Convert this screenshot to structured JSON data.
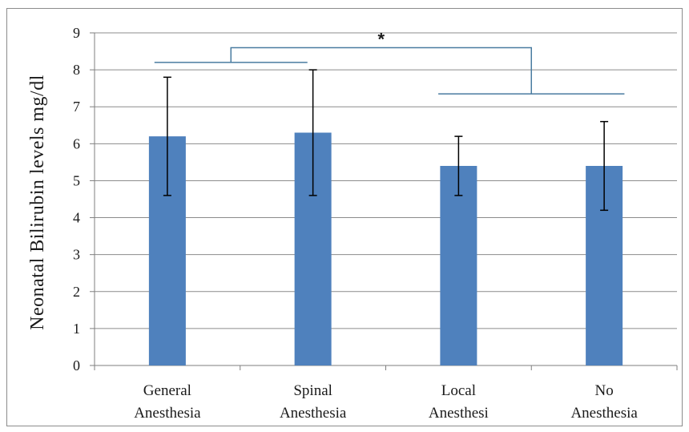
{
  "chart_data": {
    "type": "bar",
    "title": "",
    "xlabel": "",
    "ylabel": "Neonatal Bilirubin levels mg/dl",
    "ylim": [
      0,
      9
    ],
    "yticks": [
      "0",
      "1",
      "2",
      "3",
      "4",
      "5",
      "6",
      "7",
      "8",
      "9"
    ],
    "categories": [
      [
        "General",
        "Anesthesia"
      ],
      [
        "Spinal",
        "Anesthesia"
      ],
      [
        "Local",
        "Anesthesi"
      ],
      [
        "No",
        "Anesthesia"
      ]
    ],
    "values": [
      6.2,
      6.3,
      5.4,
      5.4
    ],
    "error_low": [
      4.6,
      4.6,
      4.6,
      4.2
    ],
    "error_high": [
      7.8,
      8.0,
      6.2,
      6.6
    ],
    "grid": true,
    "bar_color": "#4f81bd",
    "bracket_color": "#4a7ca0",
    "significance": {
      "label": "*",
      "left_group": [
        0,
        1
      ],
      "right_group": [
        2,
        3
      ],
      "left_bracket_y": 8.2,
      "right_bracket_y": 7.35,
      "top_y": 8.6
    }
  }
}
